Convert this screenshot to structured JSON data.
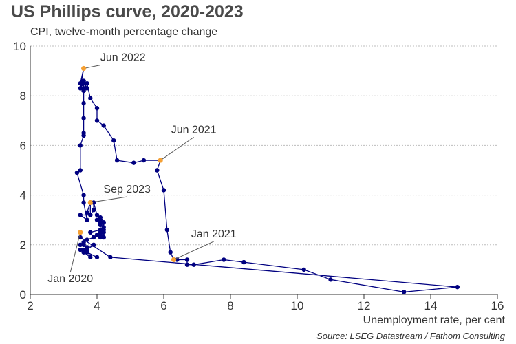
{
  "title": "US Phillips curve, 2020-2023",
  "subtitle": "CPI, twelve-month percentage change",
  "source": "Source: LSEG Datastream / Fathom Consulting",
  "colors": {
    "line": "#000080",
    "point": "#000080",
    "highlight": "#f5a033",
    "grid": "#bdbdbd"
  },
  "chart_data": {
    "type": "scatter",
    "title": "US Phillips curve, 2020-2023",
    "subtitle": "CPI, twelve-month percentage change",
    "xlabel": "Unemployment rate, per cent",
    "ylabel": "",
    "xlim": [
      2,
      16
    ],
    "ylim": [
      0,
      10
    ],
    "xticks": [
      2,
      4,
      6,
      8,
      10,
      12,
      14,
      16
    ],
    "yticks": [
      0,
      2,
      4,
      6,
      8,
      10
    ],
    "grid": "horizontal",
    "connected": true,
    "series": [
      {
        "points": [
          [
            3.5,
            2.5
          ],
          [
            3.5,
            2.3
          ],
          [
            4.4,
            1.5
          ],
          [
            14.8,
            0.3
          ],
          [
            13.2,
            0.1
          ],
          [
            11.0,
            0.6
          ],
          [
            10.2,
            1.0
          ],
          [
            8.4,
            1.3
          ],
          [
            7.8,
            1.4
          ],
          [
            6.9,
            1.2
          ],
          [
            6.7,
            1.2
          ],
          [
            6.7,
            1.4
          ],
          [
            6.4,
            1.4
          ],
          [
            6.3,
            1.4
          ],
          [
            6.2,
            1.7
          ],
          [
            6.1,
            2.6
          ],
          [
            6.0,
            4.2
          ],
          [
            5.8,
            5.0
          ],
          [
            5.9,
            5.4
          ],
          [
            5.4,
            5.4
          ],
          [
            5.1,
            5.3
          ],
          [
            4.6,
            5.4
          ],
          [
            4.5,
            6.2
          ],
          [
            4.2,
            6.8
          ],
          [
            4.0,
            7.0
          ],
          [
            4.0,
            7.5
          ],
          [
            3.8,
            7.9
          ],
          [
            3.7,
            8.5
          ],
          [
            3.6,
            8.3
          ],
          [
            3.6,
            8.6
          ],
          [
            3.7,
            8.3
          ],
          [
            3.6,
            8.5
          ],
          [
            3.5,
            8.3
          ],
          [
            3.6,
            9.1
          ],
          [
            3.5,
            8.5
          ],
          [
            3.6,
            8.2
          ],
          [
            3.6,
            7.7
          ],
          [
            3.6,
            7.1
          ],
          [
            3.6,
            6.5
          ],
          [
            3.6,
            6.4
          ],
          [
            3.5,
            6.0
          ],
          [
            3.5,
            5.0
          ],
          [
            3.4,
            4.9
          ],
          [
            3.6,
            4.0
          ],
          [
            3.6,
            3.7
          ],
          [
            3.7,
            3.0
          ],
          [
            3.5,
            3.2
          ],
          [
            3.8,
            3.2
          ],
          [
            3.7,
            3.3
          ],
          [
            3.8,
            3.7
          ],
          [
            3.8,
            3.2
          ],
          [
            3.9,
            3.4
          ],
          [
            3.9,
            3.7
          ],
          [
            4.0,
            3.2
          ],
          [
            4.1,
            3.1
          ],
          [
            4.1,
            3.0
          ],
          [
            4.0,
            3.0
          ],
          [
            4.2,
            2.9
          ],
          [
            4.2,
            2.6
          ],
          [
            4.1,
            2.9
          ],
          [
            4.1,
            2.5
          ],
          [
            4.1,
            2.4
          ],
          [
            4.2,
            2.5
          ],
          [
            4.0,
            2.4
          ],
          [
            4.2,
            2.3
          ],
          [
            4.1,
            2.3
          ],
          [
            4.2,
            2.9
          ],
          [
            4.2,
            2.3
          ],
          [
            4.1,
            2.4
          ],
          [
            4.1,
            2.8
          ],
          [
            4.2,
            2.7
          ],
          [
            4.1,
            2.6
          ],
          [
            3.8,
            2.5
          ],
          [
            3.9,
            2.3
          ],
          [
            3.7,
            2.2
          ],
          [
            3.6,
            2.1
          ],
          [
            3.6,
            2.0
          ],
          [
            3.5,
            2.0
          ],
          [
            3.7,
            1.9
          ],
          [
            3.5,
            1.8
          ],
          [
            3.6,
            1.7
          ],
          [
            3.8,
            1.5
          ],
          [
            3.7,
            1.8
          ],
          [
            3.6,
            1.7
          ],
          [
            3.9,
            2.0
          ],
          [
            3.7,
            1.9
          ],
          [
            3.6,
            1.8
          ],
          [
            3.7,
            1.7
          ],
          [
            4.0,
            1.5
          ]
        ]
      }
    ],
    "highlights": [
      {
        "label": "Jun 2022",
        "x": 3.6,
        "y": 9.1,
        "label_pos": [
          4.1,
          9.4
        ],
        "label_align": "start"
      },
      {
        "label": "Jun 2021",
        "x": 5.9,
        "y": 5.4,
        "label_pos": [
          6.9,
          6.5
        ],
        "label_align": "middle"
      },
      {
        "label": "Sep 2023",
        "x": 3.8,
        "y": 3.7,
        "label_pos": [
          4.9,
          4.1
        ],
        "label_align": "middle"
      },
      {
        "label": "Jan 2021",
        "x": 6.3,
        "y": 1.4,
        "label_pos": [
          7.5,
          2.3
        ],
        "label_align": "middle"
      },
      {
        "label": "Jan 2020",
        "x": 3.5,
        "y": 2.5,
        "label_pos": [
          3.2,
          0.5
        ],
        "label_align": "middle"
      }
    ]
  }
}
